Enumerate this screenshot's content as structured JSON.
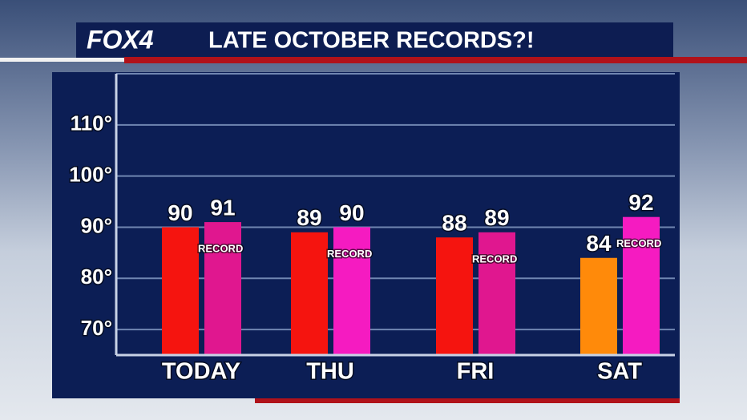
{
  "logo": "FOX4",
  "chart_data": {
    "type": "bar",
    "title": "LATE OCTOBER RECORDS?!",
    "categories": [
      "TODAY",
      "THU",
      "FRI",
      "SAT"
    ],
    "series": [
      {
        "colors": [
          "#f5140f",
          "#f5140f",
          "#f5140f",
          "#ff8a0a"
        ],
        "values": [
          90,
          89,
          88,
          84
        ]
      },
      {
        "name": "RECORD",
        "colors": [
          "#e0178f",
          "#f51bc1",
          "#e0178f",
          "#f51bc1"
        ],
        "values": [
          91,
          90,
          89,
          92
        ]
      }
    ],
    "ylim": [
      65,
      120
    ],
    "yticks": [
      {
        "value": 70,
        "label": "70°"
      },
      {
        "value": 80,
        "label": "80°"
      },
      {
        "value": 90,
        "label": "90°"
      },
      {
        "value": 100,
        "label": "100°"
      },
      {
        "value": 110,
        "label": "110°"
      },
      120
    ],
    "grid": true
  }
}
